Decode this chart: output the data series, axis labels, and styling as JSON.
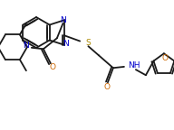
{
  "bg_color": "#ffffff",
  "lc": "#1a1a1a",
  "Nc": "#0000cc",
  "Oc": "#cc6600",
  "Sc": "#aa8800",
  "lw": 1.3,
  "figsize": [
    1.92,
    1.44
  ],
  "dpi": 100,
  "xlim": [
    0,
    192
  ],
  "ylim": [
    0,
    144
  ]
}
